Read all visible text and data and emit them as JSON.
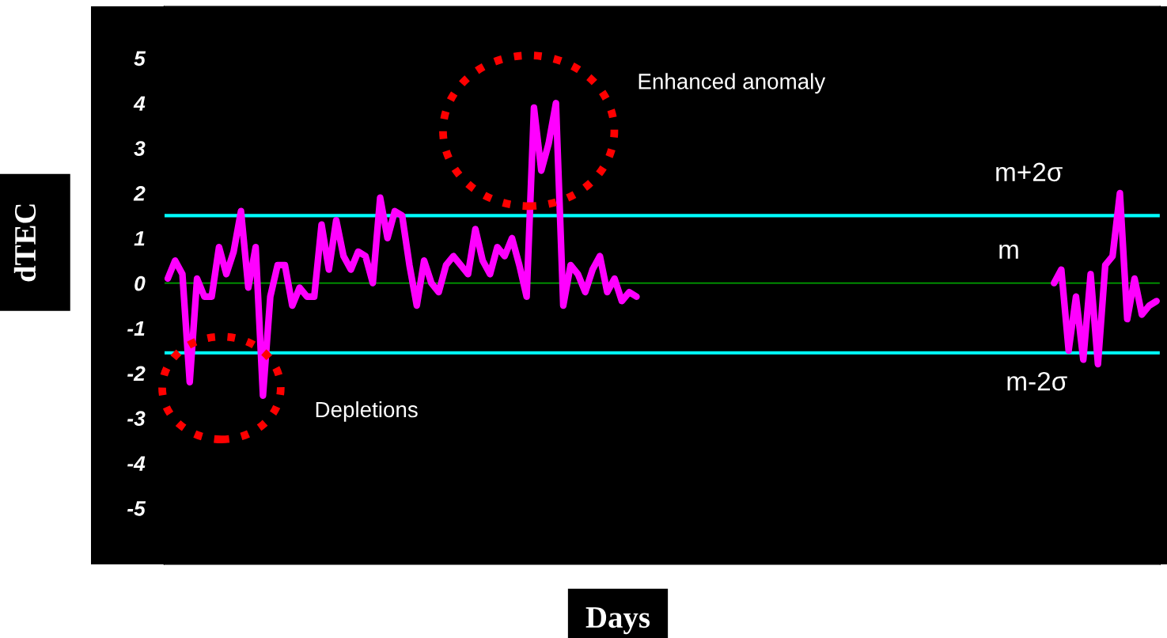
{
  "chart_data": {
    "type": "line",
    "xlabel": "Days",
    "ylabel": "dTEC",
    "categories": [
      null,
      null,
      null,
      null,
      null,
      null,
      null,
      null,
      null,
      null,
      null,
      null,
      null,
      null,
      null,
      null,
      null,
      null,
      null,
      null,
      null,
      null,
      null,
      null,
      null,
      null,
      null,
      null,
      null,
      null,
      null,
      null,
      null,
      null,
      null,
      null,
      null,
      null,
      null,
      null,
      null,
      null,
      null,
      null,
      null,
      null,
      null,
      null,
      null,
      null,
      null,
      null,
      null,
      null,
      null,
      null,
      null,
      null,
      null,
      null,
      null,
      null,
      null,
      null,
      null,
      null,
      null,
      null,
      null,
      null,
      null,
      null,
      null,
      null,
      null,
      null,
      null,
      null,
      null,
      null,
      null,
      null,
      null,
      null,
      null,
      null,
      null,
      null,
      null,
      null,
      null,
      null,
      null,
      null,
      null,
      null,
      null,
      null,
      null,
      null,
      null,
      null,
      null,
      null,
      null,
      null,
      null,
      null,
      null,
      null,
      null,
      null,
      null,
      null,
      null,
      null,
      null,
      null,
      null,
      null,
      null,
      null,
      null,
      null,
      null,
      null,
      null,
      null,
      null,
      null,
      null,
      null,
      null,
      null,
      null,
      null
    ],
    "series": [
      {
        "color": "#ff00ff",
        "values": [
          0.1,
          0.5,
          0.2,
          -2.2,
          0.1,
          -0.3,
          -0.3,
          0.8,
          0.2,
          0.7,
          1.6,
          -0.1,
          0.8,
          -2.5,
          -0.3,
          0.4,
          0.4,
          -0.5,
          -0.1,
          -0.3,
          -0.3,
          1.3,
          0.3,
          1.4,
          0.6,
          0.3,
          0.7,
          0.6,
          0.0,
          1.9,
          1.0,
          1.6,
          1.5,
          0.4,
          -0.5,
          0.5,
          0.0,
          -0.2,
          0.4,
          0.6,
          0.4,
          0.2,
          1.2,
          0.5,
          0.2,
          0.8,
          0.6,
          1.0,
          0.4,
          -0.3,
          3.9,
          2.5,
          3.1,
          4.0,
          -0.5,
          0.4,
          0.2,
          -0.2,
          0.3,
          0.6,
          -0.2,
          0.1,
          -0.4,
          -0.2,
          -0.3,
          null,
          null,
          null,
          null,
          null,
          null,
          null,
          null,
          null,
          null,
          null,
          null,
          null,
          null,
          null,
          null,
          null,
          null,
          null,
          null,
          null,
          null,
          null,
          null,
          null,
          null,
          null,
          null,
          null,
          null,
          null,
          null,
          null,
          null,
          null,
          null,
          null,
          null,
          null,
          null,
          null,
          null,
          null,
          null,
          null,
          null,
          null,
          null,
          null,
          null,
          null,
          null,
          null,
          null,
          null,
          null,
          0.0,
          0.3,
          -1.5,
          -0.3,
          -1.7,
          0.2,
          -1.8,
          0.4,
          0.6,
          2.0,
          -0.8,
          0.1,
          -0.7,
          -0.5,
          -0.4
        ]
      }
    ],
    "ylim": [
      -6.25,
      6.15
    ],
    "yticks": [
      -5,
      -4,
      -3,
      -2,
      -1,
      0,
      1,
      2,
      3,
      4,
      5
    ],
    "tick_labels": "y",
    "line_style": "solid",
    "ref_lines": [
      {
        "axis": "y",
        "value": 1.5,
        "label": "m+2σ",
        "color": "#00ffff"
      },
      {
        "axis": "y",
        "value": 0,
        "label": "m",
        "color": "#00a000"
      },
      {
        "axis": "y",
        "value": -1.55,
        "label": "m-2σ",
        "color": "#00ffff"
      }
    ],
    "annotations": [
      "Enhanced anomaly",
      "Depletions"
    ]
  }
}
